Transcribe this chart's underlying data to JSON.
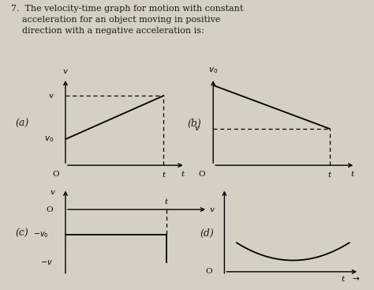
{
  "bg_color": "#d6cfc4",
  "text_color": "#1a1a1a",
  "title": "7.  The velocity-time graph for motion with constant\n    acceleration for an object moving in positive\n    direction with a negative acceleration is:",
  "title_fontsize": 8.0,
  "label_a": "(a)",
  "label_b": "(b)",
  "label_c": "(c)",
  "label_d": "(d)",
  "subplot_label_fontsize": 9,
  "axis_label_fontsize": 7.5,
  "line_lw": 1.3,
  "dash_lw": 0.9,
  "arrow_lw": 1.0
}
